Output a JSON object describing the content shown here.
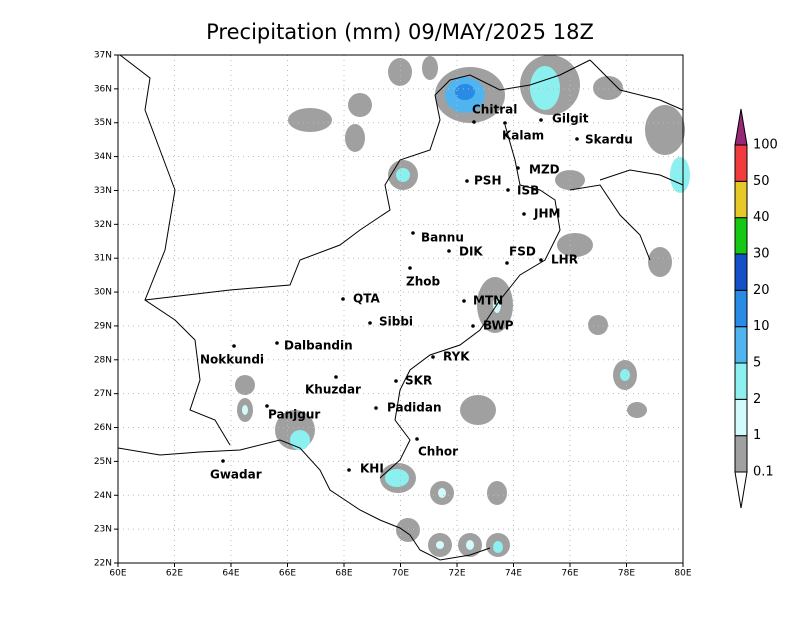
{
  "map": {
    "title": "Precipitation (mm) 09/MAY/2025 18Z",
    "xlim": [
      60,
      80
    ],
    "ylim": [
      22,
      37
    ],
    "xticks": [
      {
        "value": 60,
        "label": "60E"
      },
      {
        "value": 62,
        "label": "62E"
      },
      {
        "value": 64,
        "label": "64E"
      },
      {
        "value": 66,
        "label": "66E"
      },
      {
        "value": 68,
        "label": "68E"
      },
      {
        "value": 70,
        "label": "70E"
      },
      {
        "value": 72,
        "label": "72E"
      },
      {
        "value": 74,
        "label": "74E"
      },
      {
        "value": 76,
        "label": "76E"
      },
      {
        "value": 78,
        "label": "78E"
      },
      {
        "value": 80,
        "label": "80E"
      }
    ],
    "yticks": [
      {
        "value": 22,
        "label": "22N"
      },
      {
        "value": 23,
        "label": "23N"
      },
      {
        "value": 24,
        "label": "24N"
      },
      {
        "value": 25,
        "label": "25N"
      },
      {
        "value": 26,
        "label": "26N"
      },
      {
        "value": 27,
        "label": "27N"
      },
      {
        "value": 28,
        "label": "28N"
      },
      {
        "value": 29,
        "label": "29N"
      },
      {
        "value": 30,
        "label": "30N"
      },
      {
        "value": 31,
        "label": "31N"
      },
      {
        "value": 32,
        "label": "32N"
      },
      {
        "value": 33,
        "label": "33N"
      },
      {
        "value": 34,
        "label": "34N"
      },
      {
        "value": 35,
        "label": "35N"
      },
      {
        "value": 36,
        "label": "36N"
      },
      {
        "value": 37,
        "label": "37N"
      }
    ],
    "grid": true,
    "cities": [
      "Chitral",
      "Gilgit",
      "Kalam",
      "Skardu",
      "MZD",
      "PSH",
      "ISB",
      "JHM",
      "Bannu",
      "DIK",
      "FSD",
      "LHR",
      "Zhob",
      "QTA",
      "MTN",
      "Sibbi",
      "BWP",
      "Dalbandin",
      "Nokkundi",
      "RYK",
      "SKR",
      "Khuzdar",
      "Panjgur",
      "Padidan",
      "Chhor",
      "Gwadar",
      "KHI"
    ],
    "colorbar": {
      "levels": [
        0.1,
        1,
        2,
        5,
        10,
        20,
        30,
        40,
        50,
        100
      ],
      "colors": [
        "#ffffff",
        "#a0a0a0",
        "#d2fafa",
        "#8cf0f0",
        "#50b4f0",
        "#288ce6",
        "#1450c8",
        "#14c814",
        "#e6c828",
        "#f03c3c",
        "#962878"
      ]
    }
  }
}
